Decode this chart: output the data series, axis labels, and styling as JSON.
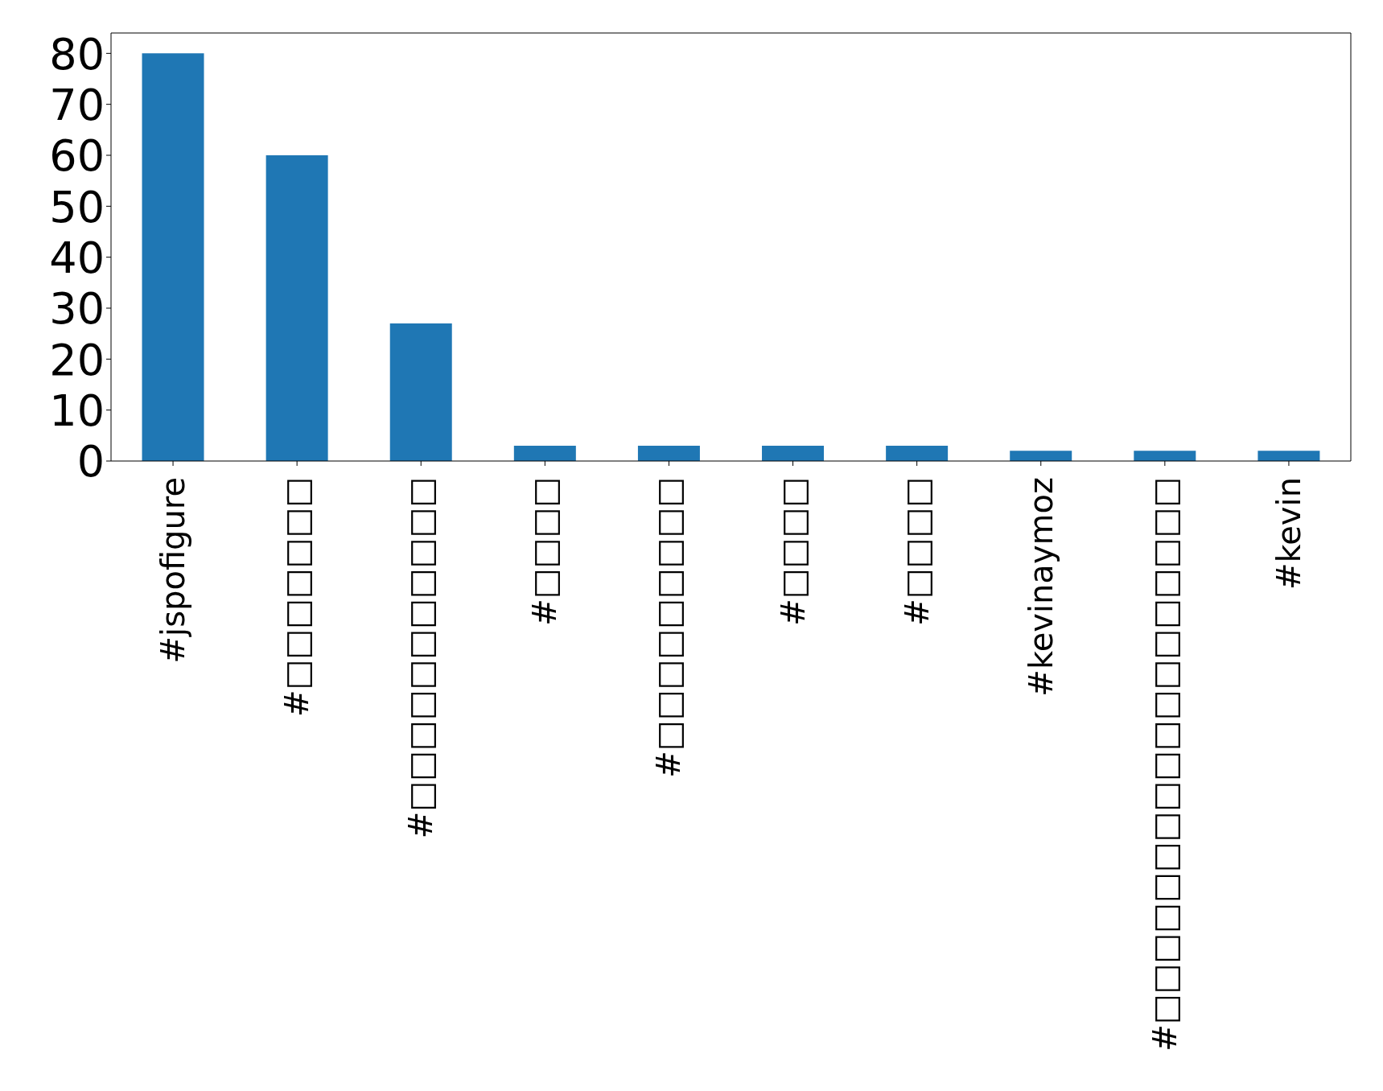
{
  "chart_data": {
    "type": "bar",
    "categories": [
      "#jspofigure",
      "#□□□□□□□",
      "#□□□□□□□□□□□",
      "#□□□□",
      "#□□□□□□□□□",
      "#□□□□",
      "#□□□□",
      "#kevinaymoz",
      "#□□□□□□□□□□□□□□□□□□",
      "#kevin"
    ],
    "values": [
      80,
      60,
      27,
      3,
      3,
      3,
      3,
      2,
      2,
      2
    ],
    "color": "#1f77b4",
    "ylim": [
      0,
      84
    ],
    "yticks": [
      0,
      10,
      20,
      30,
      40,
      50,
      60,
      70,
      80
    ],
    "grid": false,
    "legend": false
  }
}
